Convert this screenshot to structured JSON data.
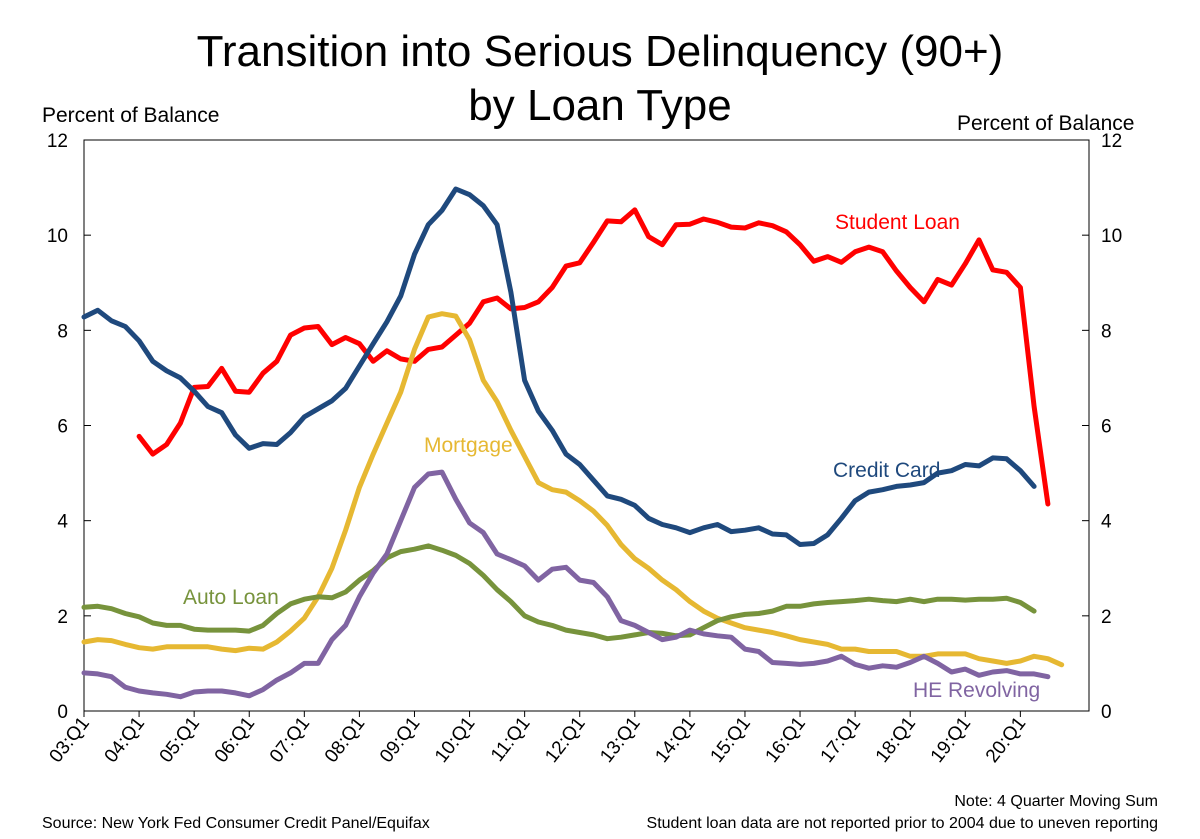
{
  "chart_data": {
    "type": "line",
    "title_line1": "Transition into Serious Delinquency (90+)",
    "title_line2": "by Loan Type",
    "ylabel_left": "Percent of Balance",
    "ylabel_right": "Percent of Balance",
    "ylim": [
      0,
      12
    ],
    "yticks": [
      "0",
      "2",
      "4",
      "6",
      "8",
      "10",
      "12"
    ],
    "xticks": [
      "03:Q1",
      "04:Q1",
      "05:Q1",
      "06:Q1",
      "07:Q1",
      "08:Q1",
      "09:Q1",
      "10:Q1",
      "11:Q1",
      "12:Q1",
      "13:Q1",
      "14:Q1",
      "15:Q1",
      "16:Q1",
      "17:Q1",
      "18:Q1",
      "19:Q1",
      "20:Q1"
    ],
    "x_start": "2003 Q1",
    "grid": false,
    "series": [
      {
        "name": "Student Loan",
        "color": "#ff0000",
        "start_index": 4,
        "values": [
          5.77,
          5.4,
          5.6,
          6.05,
          6.8,
          6.82,
          7.2,
          6.72,
          6.7,
          7.1,
          7.35,
          7.9,
          8.05,
          8.08,
          7.7,
          7.85,
          7.72,
          7.35,
          7.57,
          7.4,
          7.35,
          7.6,
          7.65,
          7.9,
          8.15,
          8.6,
          8.68,
          8.45,
          8.48,
          8.6,
          8.9,
          9.35,
          9.42,
          9.85,
          10.3,
          10.28,
          10.53,
          9.97,
          9.8,
          10.22,
          10.23,
          10.34,
          10.27,
          10.17,
          10.15,
          10.26,
          10.2,
          10.07,
          9.8,
          9.45,
          9.55,
          9.43,
          9.65,
          9.75,
          9.65,
          9.25,
          8.9,
          8.6,
          9.07,
          8.95,
          9.4,
          9.9,
          9.27,
          9.22,
          8.9,
          6.4,
          4.35
        ]
      },
      {
        "name": "Credit Card",
        "color": "#1f497d",
        "start_index": 0,
        "values": [
          8.28,
          8.42,
          8.2,
          8.08,
          7.78,
          7.35,
          7.15,
          7.0,
          6.72,
          6.4,
          6.27,
          5.8,
          5.52,
          5.62,
          5.6,
          5.85,
          6.18,
          6.35,
          6.52,
          6.78,
          7.25,
          7.72,
          8.18,
          8.72,
          9.6,
          10.22,
          10.52,
          10.97,
          10.85,
          10.62,
          10.22,
          8.8,
          6.95,
          6.3,
          5.9,
          5.4,
          5.18,
          4.85,
          4.52,
          4.45,
          4.32,
          4.05,
          3.92,
          3.85,
          3.75,
          3.85,
          3.92,
          3.77,
          3.8,
          3.85,
          3.72,
          3.7,
          3.5,
          3.52,
          3.7,
          4.05,
          4.42,
          4.6,
          4.65,
          4.72,
          4.75,
          4.8,
          5.0,
          5.05,
          5.18,
          5.15,
          5.32,
          5.3,
          5.05,
          4.72
        ]
      },
      {
        "name": "Mortgage",
        "color": "#e6b832",
        "start_index": 0,
        "values": [
          1.45,
          1.5,
          1.48,
          1.4,
          1.33,
          1.3,
          1.35,
          1.35,
          1.35,
          1.35,
          1.3,
          1.27,
          1.32,
          1.3,
          1.45,
          1.68,
          1.95,
          2.4,
          3.0,
          3.8,
          4.7,
          5.4,
          6.05,
          6.7,
          7.6,
          8.28,
          8.35,
          8.3,
          7.8,
          6.95,
          6.5,
          5.9,
          5.35,
          4.8,
          4.65,
          4.6,
          4.42,
          4.2,
          3.9,
          3.5,
          3.2,
          3.0,
          2.75,
          2.55,
          2.3,
          2.1,
          1.95,
          1.85,
          1.75,
          1.7,
          1.65,
          1.58,
          1.5,
          1.45,
          1.4,
          1.3,
          1.3,
          1.25,
          1.25,
          1.25,
          1.15,
          1.15,
          1.2,
          1.2,
          1.2,
          1.1,
          1.05,
          1.0,
          1.05,
          1.15,
          1.1,
          0.97
        ]
      },
      {
        "name": "Auto Loan",
        "color": "#77933c",
        "start_index": 0,
        "values": [
          2.18,
          2.2,
          2.15,
          2.05,
          1.98,
          1.85,
          1.8,
          1.8,
          1.72,
          1.7,
          1.7,
          1.7,
          1.68,
          1.8,
          2.05,
          2.25,
          2.35,
          2.4,
          2.38,
          2.5,
          2.75,
          2.95,
          3.22,
          3.35,
          3.4,
          3.47,
          3.38,
          3.27,
          3.1,
          2.85,
          2.55,
          2.3,
          2.0,
          1.87,
          1.8,
          1.7,
          1.65,
          1.6,
          1.52,
          1.55,
          1.6,
          1.65,
          1.63,
          1.58,
          1.6,
          1.75,
          1.9,
          1.98,
          2.03,
          2.05,
          2.1,
          2.2,
          2.2,
          2.25,
          2.28,
          2.3,
          2.32,
          2.35,
          2.32,
          2.3,
          2.35,
          2.3,
          2.35,
          2.35,
          2.33,
          2.35,
          2.35,
          2.37,
          2.28,
          2.1
        ]
      },
      {
        "name": "HE Revolving",
        "color": "#8064a2",
        "start_index": 0,
        "values": [
          0.8,
          0.78,
          0.72,
          0.5,
          0.42,
          0.38,
          0.35,
          0.3,
          0.4,
          0.42,
          0.42,
          0.38,
          0.32,
          0.45,
          0.65,
          0.8,
          1.0,
          1.0,
          1.5,
          1.8,
          2.4,
          2.9,
          3.3,
          4.0,
          4.7,
          4.98,
          5.02,
          4.45,
          3.95,
          3.75,
          3.3,
          3.18,
          3.05,
          2.75,
          2.98,
          3.02,
          2.75,
          2.7,
          2.4,
          1.9,
          1.8,
          1.65,
          1.5,
          1.55,
          1.7,
          1.62,
          1.58,
          1.55,
          1.3,
          1.25,
          1.02,
          1.0,
          0.98,
          1.0,
          1.05,
          1.15,
          0.98,
          0.9,
          0.95,
          0.92,
          1.02,
          1.15,
          1.0,
          0.82,
          0.88,
          0.75,
          0.82,
          0.85,
          0.78,
          0.78,
          0.72
        ]
      }
    ],
    "annotations": [
      {
        "text": "Student Loan",
        "color": "#ff0000"
      },
      {
        "text": "Credit Card",
        "color": "#1f497d"
      },
      {
        "text": "Mortgage",
        "color": "#e6b832"
      },
      {
        "text": "Auto Loan",
        "color": "#77933c"
      },
      {
        "text": "HE Revolving",
        "color": "#8064a2"
      }
    ],
    "source": "Source: New York Fed Consumer Credit Panel/Equifax",
    "note_line1": "Note: 4 Quarter Moving Sum",
    "note_line2": "Student loan data are not reported prior to 2004 due to uneven reporting"
  }
}
